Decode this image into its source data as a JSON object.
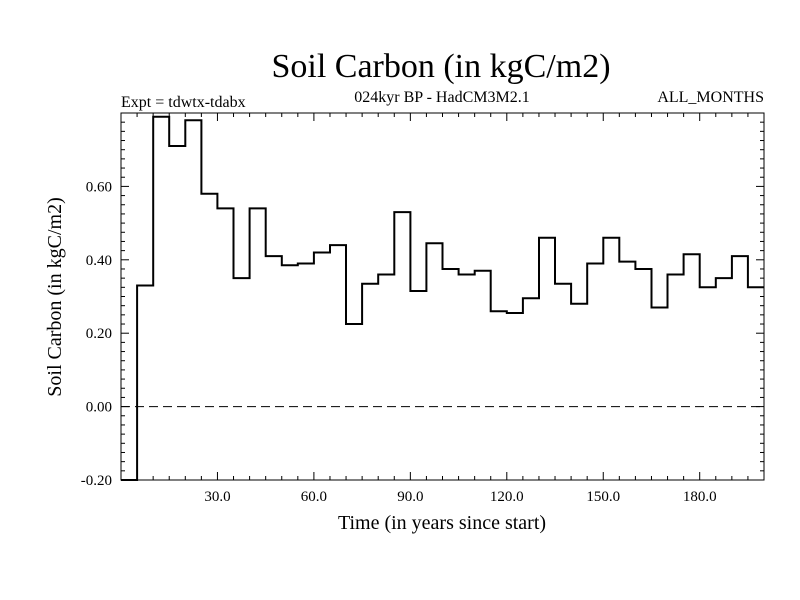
{
  "chart_data": {
    "type": "line",
    "style": "step",
    "title": "Soil Carbon (in kgC/m2)",
    "subtitle": "024kyr BP - HadCM3M2.1",
    "experiment_label": "Expt = tdwtx-tdabx",
    "months_label": "ALL_MONTHS",
    "xlabel": "Time (in years since start)",
    "ylabel": "Soil Carbon (in kgC/m2)",
    "xlim": [
      0,
      200
    ],
    "ylim": [
      -0.2,
      0.8
    ],
    "x_ticks": [
      30,
      60,
      90,
      120,
      150,
      180
    ],
    "x_tick_labels": [
      "30.0",
      "60.0",
      "90.0",
      "120.0",
      "150.0",
      "180.0"
    ],
    "y_ticks": [
      -0.2,
      0.0,
      0.2,
      0.4,
      0.6
    ],
    "y_tick_labels": [
      "-0.20",
      "0.00",
      "0.20",
      "0.40",
      "0.60"
    ],
    "reference_line": {
      "y": 0.0,
      "style": "dashed"
    },
    "bin_width": 5,
    "x": [
      0,
      5,
      10,
      15,
      20,
      25,
      30,
      35,
      40,
      45,
      50,
      55,
      60,
      65,
      70,
      75,
      80,
      85,
      90,
      95,
      100,
      105,
      110,
      115,
      120,
      125,
      130,
      135,
      140,
      145,
      150,
      155,
      160,
      165,
      170,
      175,
      180,
      185,
      190,
      195
    ],
    "values": [
      -0.2,
      0.33,
      0.79,
      0.71,
      0.78,
      0.58,
      0.54,
      0.35,
      0.54,
      0.41,
      0.385,
      0.39,
      0.42,
      0.44,
      0.225,
      0.335,
      0.36,
      0.53,
      0.315,
      0.445,
      0.375,
      0.36,
      0.37,
      0.26,
      0.255,
      0.295,
      0.46,
      0.335,
      0.28,
      0.39,
      0.46,
      0.395,
      0.375,
      0.27,
      0.36,
      0.415,
      0.325,
      0.35,
      0.41,
      0.325
    ]
  }
}
